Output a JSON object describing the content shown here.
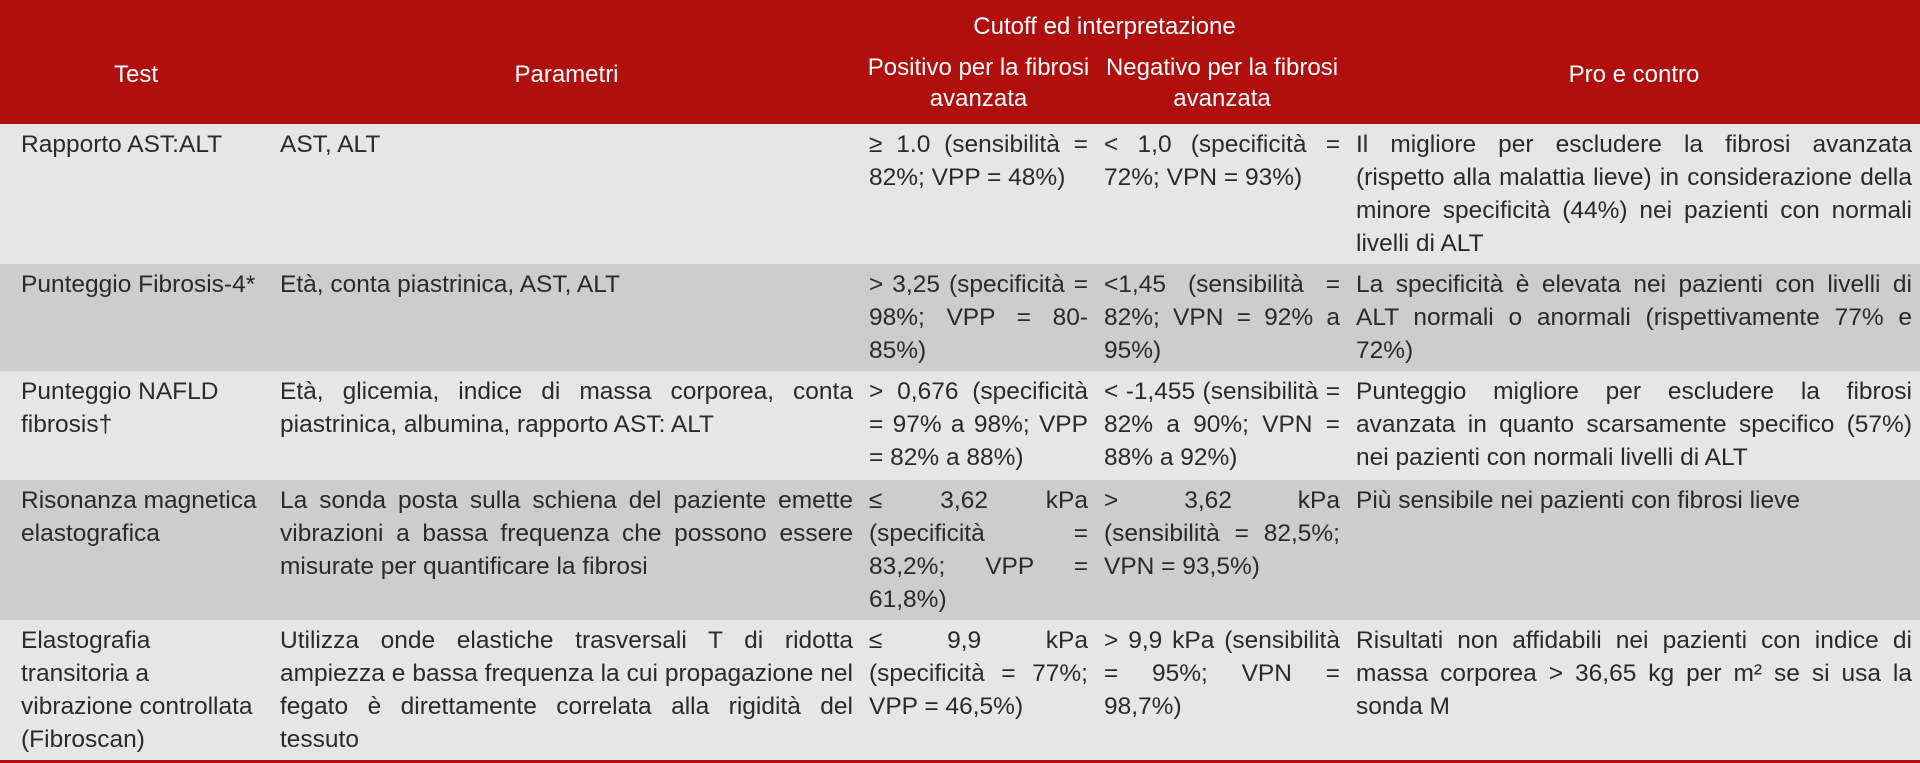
{
  "header": {
    "group_title": "Cutoff ed interpretazione",
    "col_test": "Test",
    "col_params": "Parametri",
    "col_positive": "Positivo per la fibrosi avanzata",
    "col_negative": "Negativo per la fibrosi avanzata",
    "col_procon": "Pro e contro"
  },
  "rows": [
    {
      "test": "Rapporto AST:ALT",
      "params": "AST, ALT",
      "positive": "≥ 1.0 (sensibilità = 82%; VPP = 48%)",
      "negative": "< 1,0 (specificità = 72%; VPN = 93%)",
      "procon": "Il migliore per escludere la fibrosi avanzata (rispetto alla malattia lieve) in considerazione della minore specificità (44%) nei pazienti con normali livelli di ALT"
    },
    {
      "test": "Punteggio Fibrosis-4*",
      "params": "Età, conta piastrinica, AST, ALT",
      "positive": "> 3,25 (specificità = 98%; VPP = 80-85%)",
      "negative": "<1,45 (sensibilità = 82%; VPN = 92% a 95%)",
      "procon": "La specificità è elevata nei pazienti con livelli di ALT normali o anormali (rispettivamente 77% e 72%)"
    },
    {
      "test": "Punteggio NAFLD fibrosis†",
      "params": "Età, glicemia, indice di massa corporea, conta piastrinica, albumina, rapporto AST: ALT",
      "positive": "> 0,676 (specificità = 97% a 98%; VPP = 82% a 88%)",
      "negative": "< -1,455 (sensibilità = 82% a 90%; VPN = 88% a 92%)",
      "procon": "Punteggio migliore per escludere la fibrosi avanzata in quanto scarsamente specifico (57%) nei pazienti con normali livelli di ALT"
    },
    {
      "test": "Risonanza magnetica elastografica",
      "params": "La sonda posta sulla schiena del paziente emette vibrazioni a bassa frequenza che possono essere misurate per quantificare la fibrosi",
      "positive": "≤ 3,62 kPa (specificità = 83,2%; VPP = 61,8%)",
      "negative": "> 3,62 kPa (sensibilità = 82,5%; VPN = 93,5%)",
      "procon": "Più sensibile nei pazienti con fibrosi lieve"
    },
    {
      "test": "Elastografia transitoria a vibrazione controllata (Fibroscan)",
      "params": "Utilizza onde elastiche trasversali T di ridotta ampiezza e bassa frequenza la cui propagazione nel fegato è direttamente correlata alla rigidità del tessuto",
      "positive": "≤ 9,9 kPa (specificità = 77%; VPP = 46,5%)",
      "negative": "> 9,9 kPa (sensibilità = 95%; VPN = 98,7%)",
      "procon": "Risultati non affidabili nei pazienti con indice di massa corporea > 36,65 kg per m² se si usa la sonda M"
    }
  ]
}
